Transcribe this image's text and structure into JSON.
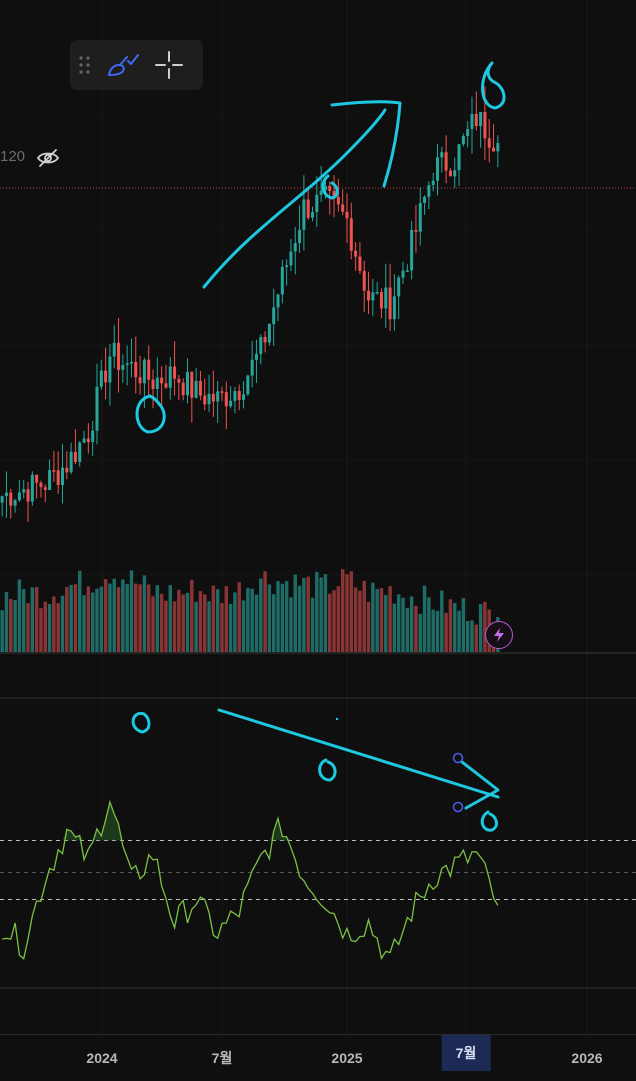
{
  "toolbar": {
    "grip_icon": "drag-grip-icon",
    "brush_icon": "brush-check-icon",
    "crosshair_icon": "crosshair-icon",
    "accent": "#3d6cf0"
  },
  "price_scale": {
    "label": "120",
    "eye_icon": "eye-off-icon"
  },
  "flash_icon": "lightning-icon",
  "time_axis": {
    "ticks": [
      {
        "label": "2024",
        "highlight": false
      },
      {
        "label": "7월",
        "highlight": false
      },
      {
        "label": "2025",
        "highlight": false
      },
      {
        "label": "7월",
        "highlight": true
      },
      {
        "label": "2026",
        "highlight": false
      }
    ]
  },
  "colors": {
    "up": "#26a69a",
    "down": "#ef5350",
    "indicator": "#7bc043",
    "drawing": "#1ec8e0",
    "marker": "#4a5cf0"
  },
  "chart_data": {
    "type": "candlestick",
    "note_axis": "weekly candles, price in arbitrary units",
    "x": [
      "2023-09",
      "2023-10",
      "2023-11",
      "2023-12",
      "2024-01",
      "2024-02",
      "2024-03",
      "2024-04",
      "2024-05",
      "2024-06",
      "2024-07",
      "2024-08",
      "2024-09",
      "2024-10",
      "2024-11",
      "2024-12",
      "2025-01",
      "2025-02",
      "2025-03",
      "2025-04",
      "2025-05",
      "2025-06",
      "2025-07",
      "2025-08"
    ],
    "close": [
      60,
      62,
      64,
      70,
      80,
      104,
      100,
      96,
      98,
      92,
      90,
      94,
      105,
      128,
      150,
      152,
      146,
      122,
      120,
      138,
      162,
      165,
      178,
      170
    ],
    "volume": [
      55,
      60,
      58,
      65,
      70,
      80,
      72,
      60,
      58,
      62,
      57,
      62,
      75,
      70,
      68,
      65,
      72,
      60,
      62,
      55,
      50,
      45,
      42,
      35
    ],
    "indicator": {
      "name": "",
      "values": [
        35,
        28,
        52,
        68,
        58,
        80,
        50,
        60,
        36,
        44,
        32,
        40,
        58,
        70,
        52,
        44,
        32,
        36,
        22,
        40,
        52,
        56,
        60,
        42
      ],
      "levels": [
        70,
        50,
        30
      ]
    }
  }
}
